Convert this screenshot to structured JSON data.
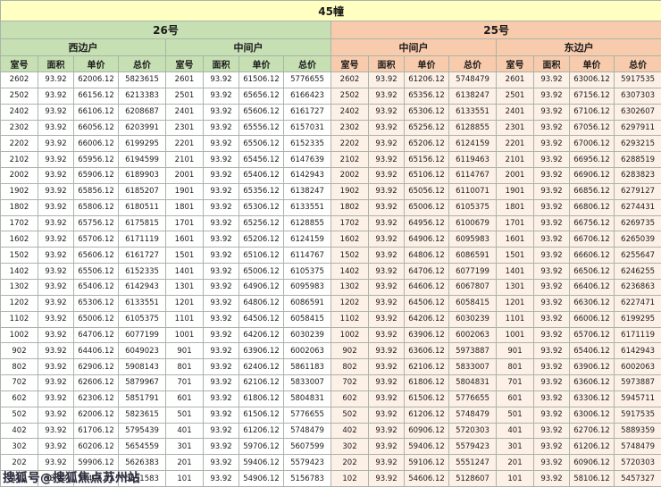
{
  "title": "45幢",
  "watermark": "搜狐号@搜狐焦点苏州站",
  "buildings": [
    {
      "name": "26号",
      "units": [
        "西边户",
        "中间户"
      ]
    },
    {
      "name": "25号",
      "units": [
        "中间户",
        "东边户"
      ]
    }
  ],
  "column_headers": [
    "室号",
    "面积",
    "单价",
    "总价"
  ],
  "colors": {
    "title_bg": "#ffffc2",
    "left_header_bg": "#c6e0b4",
    "right_header_bg": "#f8cbad",
    "right_cell_bg": "#fdf0e7"
  },
  "rows": [
    [
      "2602",
      "93.92",
      "62006.12",
      "5823615",
      "2601",
      "93.92",
      "61506.12",
      "5776655",
      "2602",
      "93.92",
      "61206.12",
      "5748479",
      "2601",
      "93.92",
      "63006.12",
      "5917535"
    ],
    [
      "2502",
      "93.92",
      "66156.12",
      "6213383",
      "2501",
      "93.92",
      "65656.12",
      "6166423",
      "2502",
      "93.92",
      "65356.12",
      "6138247",
      "2501",
      "93.92",
      "67156.12",
      "6307303"
    ],
    [
      "2402",
      "93.92",
      "66106.12",
      "6208687",
      "2401",
      "93.92",
      "65606.12",
      "6161727",
      "2402",
      "93.92",
      "65306.12",
      "6133551",
      "2401",
      "93.92",
      "67106.12",
      "6302607"
    ],
    [
      "2302",
      "93.92",
      "66056.12",
      "6203991",
      "2301",
      "93.92",
      "65556.12",
      "6157031",
      "2302",
      "93.92",
      "65256.12",
      "6128855",
      "2301",
      "93.92",
      "67056.12",
      "6297911"
    ],
    [
      "2202",
      "93.92",
      "66006.12",
      "6199295",
      "2201",
      "93.92",
      "65506.12",
      "6152335",
      "2202",
      "93.92",
      "65206.12",
      "6124159",
      "2201",
      "93.92",
      "67006.12",
      "6293215"
    ],
    [
      "2102",
      "93.92",
      "65956.12",
      "6194599",
      "2101",
      "93.92",
      "65456.12",
      "6147639",
      "2102",
      "93.92",
      "65156.12",
      "6119463",
      "2101",
      "93.92",
      "66956.12",
      "6288519"
    ],
    [
      "2002",
      "93.92",
      "65906.12",
      "6189903",
      "2001",
      "93.92",
      "65406.12",
      "6142943",
      "2002",
      "93.92",
      "65106.12",
      "6114767",
      "2001",
      "93.92",
      "66906.12",
      "6283823"
    ],
    [
      "1902",
      "93.92",
      "65856.12",
      "6185207",
      "1901",
      "93.92",
      "65356.12",
      "6138247",
      "1902",
      "93.92",
      "65056.12",
      "6110071",
      "1901",
      "93.92",
      "66856.12",
      "6279127"
    ],
    [
      "1802",
      "93.92",
      "65806.12",
      "6180511",
      "1801",
      "93.92",
      "65306.12",
      "6133551",
      "1802",
      "93.92",
      "65006.12",
      "6105375",
      "1801",
      "93.92",
      "66806.12",
      "6274431"
    ],
    [
      "1702",
      "93.92",
      "65756.12",
      "6175815",
      "1701",
      "93.92",
      "65256.12",
      "6128855",
      "1702",
      "93.92",
      "64956.12",
      "6100679",
      "1701",
      "93.92",
      "66756.12",
      "6269735"
    ],
    [
      "1602",
      "93.92",
      "65706.12",
      "6171119",
      "1601",
      "93.92",
      "65206.12",
      "6124159",
      "1602",
      "93.92",
      "64906.12",
      "6095983",
      "1601",
      "93.92",
      "66706.12",
      "6265039"
    ],
    [
      "1502",
      "93.92",
      "65606.12",
      "6161727",
      "1501",
      "93.92",
      "65106.12",
      "6114767",
      "1502",
      "93.92",
      "64806.12",
      "6086591",
      "1501",
      "93.92",
      "66606.12",
      "6255647"
    ],
    [
      "1402",
      "93.92",
      "65506.12",
      "6152335",
      "1401",
      "93.92",
      "65006.12",
      "6105375",
      "1402",
      "93.92",
      "64706.12",
      "6077199",
      "1401",
      "93.92",
      "66506.12",
      "6246255"
    ],
    [
      "1302",
      "93.92",
      "65406.12",
      "6142943",
      "1301",
      "93.92",
      "64906.12",
      "6095983",
      "1302",
      "93.92",
      "64606.12",
      "6067807",
      "1301",
      "93.92",
      "66406.12",
      "6236863"
    ],
    [
      "1202",
      "93.92",
      "65306.12",
      "6133551",
      "1201",
      "93.92",
      "64806.12",
      "6086591",
      "1202",
      "93.92",
      "64506.12",
      "6058415",
      "1201",
      "93.92",
      "66306.12",
      "6227471"
    ],
    [
      "1102",
      "93.92",
      "65006.12",
      "6105375",
      "1101",
      "93.92",
      "64506.12",
      "6058415",
      "1102",
      "93.92",
      "64206.12",
      "6030239",
      "1101",
      "93.92",
      "66006.12",
      "6199295"
    ],
    [
      "1002",
      "93.92",
      "64706.12",
      "6077199",
      "1001",
      "93.92",
      "64206.12",
      "6030239",
      "1002",
      "93.92",
      "63906.12",
      "6002063",
      "1001",
      "93.92",
      "65706.12",
      "6171119"
    ],
    [
      "902",
      "93.92",
      "64406.12",
      "6049023",
      "901",
      "93.92",
      "63906.12",
      "6002063",
      "902",
      "93.92",
      "63606.12",
      "5973887",
      "901",
      "93.92",
      "65406.12",
      "6142943"
    ],
    [
      "802",
      "93.92",
      "62906.12",
      "5908143",
      "801",
      "93.92",
      "62406.12",
      "5861183",
      "802",
      "93.92",
      "62106.12",
      "5833007",
      "801",
      "93.92",
      "63906.12",
      "6002063"
    ],
    [
      "702",
      "93.92",
      "62606.12",
      "5879967",
      "701",
      "93.92",
      "62106.12",
      "5833007",
      "702",
      "93.92",
      "61806.12",
      "5804831",
      "701",
      "93.92",
      "63606.12",
      "5973887"
    ],
    [
      "602",
      "93.92",
      "62306.12",
      "5851791",
      "601",
      "93.92",
      "61806.12",
      "5804831",
      "602",
      "93.92",
      "61506.12",
      "5776655",
      "601",
      "93.92",
      "63306.12",
      "5945711"
    ],
    [
      "502",
      "93.92",
      "62006.12",
      "5823615",
      "501",
      "93.92",
      "61506.12",
      "5776655",
      "502",
      "93.92",
      "61206.12",
      "5748479",
      "501",
      "93.92",
      "63006.12",
      "5917535"
    ],
    [
      "402",
      "93.92",
      "61706.12",
      "5795439",
      "401",
      "93.92",
      "61206.12",
      "5748479",
      "402",
      "93.92",
      "60906.12",
      "5720303",
      "401",
      "93.92",
      "62706.12",
      "5889359"
    ],
    [
      "302",
      "93.92",
      "60206.12",
      "5654559",
      "301",
      "93.92",
      "59706.12",
      "5607599",
      "302",
      "93.92",
      "59406.12",
      "5579423",
      "301",
      "93.92",
      "61206.12",
      "5748479"
    ],
    [
      "202",
      "93.92",
      "59906.12",
      "5626383",
      "201",
      "93.92",
      "59406.12",
      "5579423",
      "202",
      "93.92",
      "59106.12",
      "5551247",
      "201",
      "93.92",
      "60906.12",
      "5720303"
    ],
    [
      "102",
      "93.92",
      "57406.12",
      "5391583",
      "101",
      "93.92",
      "54906.12",
      "5156783",
      "102",
      "93.92",
      "54606.12",
      "5128607",
      "101",
      "93.92",
      "58106.12",
      "5457327"
    ]
  ]
}
